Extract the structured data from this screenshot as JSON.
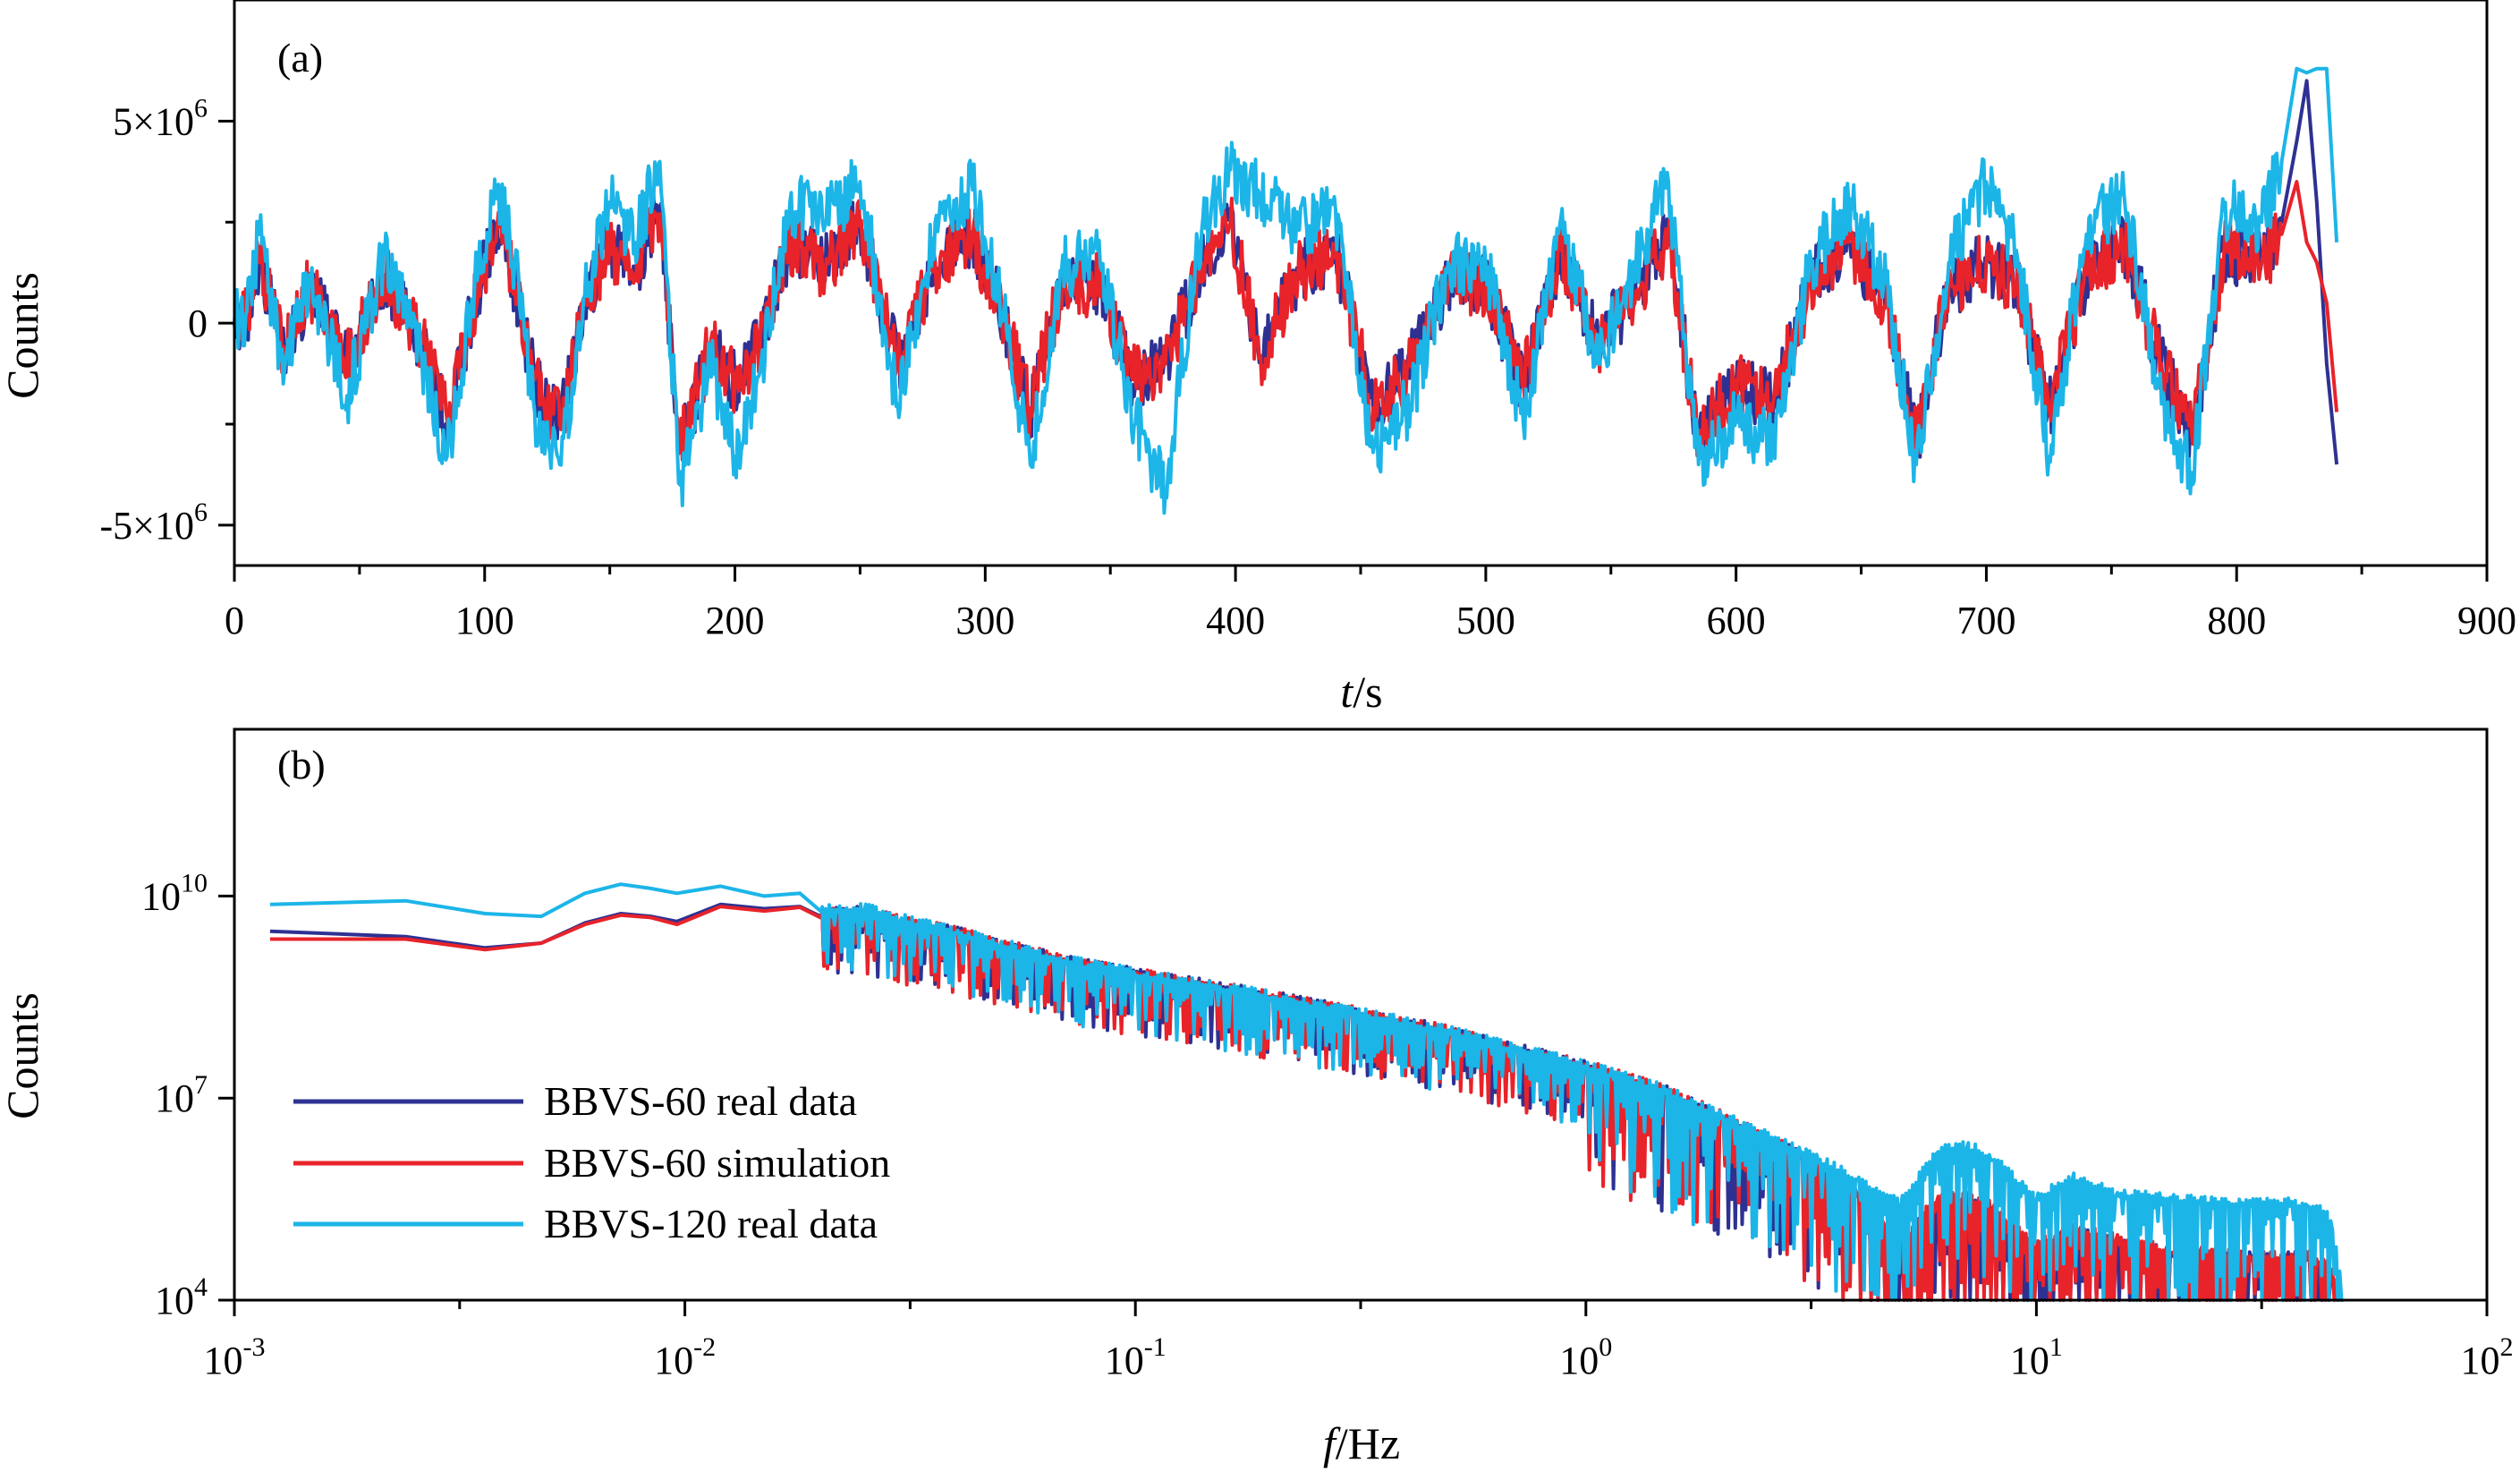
{
  "chart_data": [
    {
      "type": "line",
      "panel_label": "(a)",
      "xlabel_italic": "t",
      "xlabel_rest": "/s",
      "ylabel": "Counts",
      "xlim": [
        0,
        900
      ],
      "ylim": [
        -6000000,
        8000000
      ],
      "x_ticks": [
        0,
        100,
        200,
        300,
        400,
        500,
        600,
        700,
        800,
        900
      ],
      "x_tick_labels": [
        "0",
        "100",
        "200",
        "300",
        "400",
        "500",
        "600",
        "700",
        "800",
        "900"
      ],
      "y_ticks": [
        {
          "value": 5000000,
          "mantissa": "5×10",
          "exp": "6"
        },
        {
          "value": 0,
          "mantissa": "0",
          "exp": ""
        },
        {
          "value": -5000000,
          "mantissa": "-5×10",
          "exp": "6"
        }
      ],
      "series": [
        {
          "name": "BBVS-60 real data",
          "color": "#2e3192",
          "t": [
            0,
            5,
            10,
            20,
            30,
            45,
            60,
            75,
            85,
            95,
            105,
            112,
            120,
            130,
            140,
            150,
            160,
            170,
            178,
            190,
            200,
            210,
            222,
            235,
            250,
            265,
            280,
            295,
            305,
            318,
            330,
            345,
            360,
            372,
            385,
            398,
            410,
            425,
            440,
            455,
            470,
            485,
            500,
            515,
            530,
            545,
            560,
            573,
            585,
            600,
            615,
            630,
            645,
            660,
            672,
            685,
            700,
            712,
            725,
            740,
            755,
            770,
            782,
            795,
            810,
            818,
            824,
            828,
            832,
            836,
            840
          ],
          "v": [
            0,
            200000,
            1500000,
            -800000,
            900000,
            -1000000,
            1200000,
            -500000,
            -2500000,
            300000,
            2500000,
            1000000,
            -1500000,
            -2600000,
            500000,
            2000000,
            1200000,
            2800000,
            -3200000,
            -600000,
            -1500000,
            -500000,
            2000000,
            1400000,
            2500000,
            -1000000,
            1500000,
            2200000,
            500000,
            -2200000,
            800000,
            1000000,
            -1500000,
            -1000000,
            1200000,
            2600000,
            -800000,
            1200000,
            1800000,
            -2200000,
            -1000000,
            1000000,
            900000,
            -1500000,
            1800000,
            -500000,
            800000,
            2200000,
            -3000000,
            -1500000,
            -2000000,
            1000000,
            2000000,
            500000,
            -3000000,
            900000,
            1500000,
            1000000,
            -2200000,
            1200000,
            2000000,
            -1000000,
            -2800000,
            1800000,
            1500000,
            2500000,
            4500000,
            6000000,
            3000000,
            -1000000,
            -3500000
          ]
        },
        {
          "name": "BBVS-60 simulation",
          "color": "#e8232a",
          "t": [
            0,
            5,
            10,
            20,
            30,
            45,
            60,
            75,
            85,
            95,
            105,
            112,
            120,
            130,
            140,
            150,
            160,
            170,
            178,
            190,
            200,
            210,
            222,
            235,
            250,
            265,
            280,
            295,
            305,
            318,
            330,
            345,
            360,
            372,
            385,
            398,
            410,
            425,
            440,
            455,
            470,
            485,
            500,
            515,
            530,
            545,
            560,
            573,
            585,
            600,
            615,
            630,
            645,
            660,
            672,
            685,
            700,
            712,
            725,
            740,
            755,
            770,
            782,
            795,
            810,
            818,
            824,
            828,
            832,
            836,
            840
          ],
          "v": [
            0,
            200000,
            1500000,
            -800000,
            900000,
            -1000000,
            1200000,
            -500000,
            -2400000,
            300000,
            2400000,
            1000000,
            -1400000,
            -2500000,
            500000,
            1900000,
            1200000,
            2700000,
            -3100000,
            -600000,
            -1500000,
            -500000,
            2000000,
            1300000,
            2400000,
            -1000000,
            1500000,
            2100000,
            500000,
            -2100000,
            800000,
            1000000,
            -1400000,
            -1000000,
            1200000,
            2500000,
            -800000,
            1200000,
            1800000,
            -2100000,
            -1000000,
            1000000,
            900000,
            -1400000,
            1800000,
            -500000,
            800000,
            2100000,
            -2900000,
            -1400000,
            -1900000,
            1000000,
            2000000,
            500000,
            -2900000,
            900000,
            1500000,
            1000000,
            -2100000,
            1200000,
            1900000,
            -1000000,
            -2700000,
            1800000,
            1500000,
            2200000,
            3500000,
            2000000,
            1500000,
            500000,
            -2200000
          ]
        },
        {
          "name": "BBVS-120 real data",
          "color": "#1cb5e8",
          "t": [
            0,
            5,
            10,
            20,
            30,
            45,
            60,
            75,
            85,
            95,
            105,
            112,
            120,
            130,
            140,
            150,
            160,
            170,
            178,
            190,
            200,
            210,
            222,
            235,
            250,
            265,
            280,
            295,
            305,
            318,
            330,
            345,
            360,
            372,
            385,
            398,
            410,
            425,
            440,
            455,
            470,
            485,
            500,
            515,
            530,
            545,
            560,
            573,
            585,
            600,
            615,
            630,
            645,
            660,
            672,
            685,
            700,
            712,
            725,
            740,
            755,
            770,
            782,
            795,
            810,
            818,
            824,
            828,
            832,
            836,
            840
          ],
          "v": [
            0,
            300000,
            2200000,
            -1200000,
            1200000,
            -1800000,
            1700000,
            -1000000,
            -3300000,
            600000,
            3400000,
            1500000,
            -2200000,
            -3500000,
            700000,
            3000000,
            2000000,
            4000000,
            -4000000,
            -1000000,
            -3300000,
            -1200000,
            3000000,
            2500000,
            3500000,
            -2000000,
            2500000,
            3300000,
            1000000,
            -3500000,
            1300000,
            1800000,
            -2500000,
            -4200000,
            2000000,
            3800000,
            3200000,
            2300000,
            2800000,
            -3200000,
            -2000000,
            1500000,
            1500000,
            -2500000,
            2600000,
            -1000000,
            1500000,
            3500000,
            -3500000,
            -2400000,
            -3000000,
            1500000,
            3000000,
            1000000,
            -3500000,
            1500000,
            3500000,
            1800000,
            -3300000,
            2200000,
            3200000,
            -2000000,
            -3700000,
            2800000,
            2500000,
            4000000,
            6300000,
            6200000,
            6300000,
            6300000,
            2000000
          ]
        }
      ]
    },
    {
      "type": "line",
      "scale": "log-log",
      "panel_label": "(b)",
      "xlabel_italic": "f",
      "xlabel_rest": "/Hz",
      "ylabel": "Counts",
      "xlim": [
        0.001,
        100
      ],
      "ylim": [
        10000,
        3000000000000
      ],
      "x_ticks": [
        {
          "value": 0.001,
          "base": "10",
          "exp": "-3"
        },
        {
          "value": 0.01,
          "base": "10",
          "exp": "-2"
        },
        {
          "value": 0.1,
          "base": "10",
          "exp": "-1"
        },
        {
          "value": 1,
          "base": "10",
          "exp": "0"
        },
        {
          "value": 10,
          "base": "10",
          "exp": "1"
        },
        {
          "value": 100,
          "base": "10",
          "exp": "2"
        }
      ],
      "y_ticks": [
        {
          "value": 10000,
          "base": "10",
          "exp": "4"
        },
        {
          "value": 10000000,
          "base": "10",
          "exp": "7"
        },
        {
          "value": 10000000000,
          "base": "10",
          "exp": "10"
        }
      ],
      "legend_position": "lower-left",
      "series": [
        {
          "name": "BBVS-60 real data",
          "color": "#2e3192",
          "f": [
            0.0012,
            0.0024,
            0.0036,
            0.0048,
            0.006,
            0.0072,
            0.0084,
            0.0096,
            0.012,
            0.015,
            0.018,
            0.02,
            0.025,
            0.03,
            0.04,
            0.05,
            0.07,
            0.1,
            0.15,
            0.2,
            0.3,
            0.5,
            0.7,
            1.0,
            1.5,
            2.0,
            3.0,
            4.0,
            5.0,
            6.0,
            7.0,
            8.0,
            10.0,
            12.0,
            15.0,
            20.0,
            30.0,
            40.0,
            45.0,
            48.0
          ],
          "v": [
            3000000000,
            2500000000,
            1700000000,
            2000000000,
            4000000000,
            5500000000,
            5000000000,
            4200000000,
            7500000000,
            6500000000,
            7000000000,
            5000000000,
            5500000000,
            4000000000,
            2700000000,
            1800000000,
            1000000000,
            650000000,
            420000000,
            300000000,
            180000000,
            90000000,
            50000000,
            28000000,
            12000000,
            5000000,
            1300000,
            350000,
            60000,
            250000,
            300000,
            200000,
            50000,
            100000,
            70000,
            45000,
            40000,
            40000,
            25000,
            10000
          ]
        },
        {
          "name": "BBVS-60 simulation",
          "color": "#e8232a",
          "f": [
            0.0012,
            0.0024,
            0.0036,
            0.0048,
            0.006,
            0.0072,
            0.0084,
            0.0096,
            0.012,
            0.015,
            0.018,
            0.02,
            0.025,
            0.03,
            0.04,
            0.05,
            0.07,
            0.1,
            0.15,
            0.2,
            0.3,
            0.5,
            0.7,
            1.0,
            1.5,
            2.0,
            3.0,
            4.0,
            5.0,
            6.0,
            7.0,
            8.0,
            10.0,
            12.0,
            15.0,
            20.0,
            30.0,
            40.0,
            45.0,
            48.0
          ],
          "v": [
            2300000000,
            2300000000,
            1600000000,
            2000000000,
            3800000000,
            5200000000,
            4800000000,
            3800000000,
            7000000000,
            6000000000,
            6800000000,
            4800000000,
            5500000000,
            4000000000,
            2700000000,
            1800000000,
            1000000000,
            650000000,
            420000000,
            300000000,
            180000000,
            90000000,
            50000000,
            28000000,
            12000000,
            5000000,
            1300000,
            350000,
            70000,
            280000,
            320000,
            220000,
            60000,
            110000,
            75000,
            50000,
            42000,
            42000,
            28000,
            10000
          ]
        },
        {
          "name": "BBVS-120 real data",
          "color": "#1cb5e8",
          "f": [
            0.0012,
            0.0024,
            0.0036,
            0.0048,
            0.006,
            0.0072,
            0.0084,
            0.0096,
            0.012,
            0.015,
            0.018,
            0.02,
            0.025,
            0.03,
            0.04,
            0.05,
            0.07,
            0.1,
            0.15,
            0.2,
            0.3,
            0.5,
            0.7,
            1.0,
            1.5,
            2.0,
            3.0,
            4.0,
            5.0,
            6.0,
            7.0,
            8.0,
            10.0,
            12.0,
            15.0,
            20.0,
            30.0,
            40.0,
            45.0,
            48.0
          ],
          "v": [
            7500000000,
            8500000000,
            5500000000,
            5000000000,
            11000000000,
            15000000000,
            13000000000,
            11000000000,
            14000000000,
            10000000000,
            11000000000,
            6000000000,
            6000000000,
            4200000000,
            2800000000,
            1800000000,
            1000000000,
            650000000,
            420000000,
            300000000,
            180000000,
            90000000,
            50000000,
            28000000,
            12000000,
            5000000,
            1500000,
            600000,
            250000,
            1500000,
            1800000,
            1200000,
            300000,
            600000,
            350000,
            300000,
            250000,
            250000,
            150000,
            10000
          ]
        }
      ]
    }
  ]
}
